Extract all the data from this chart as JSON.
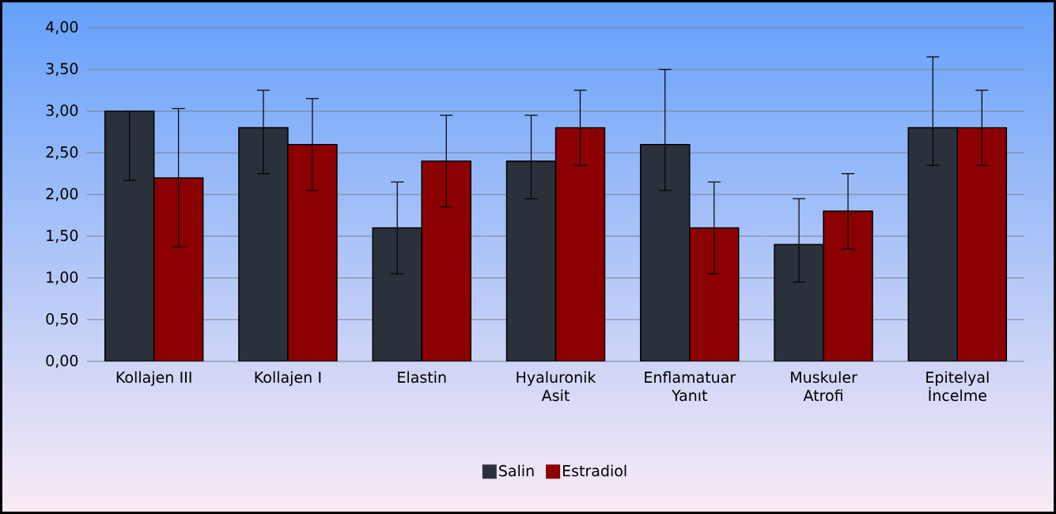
{
  "chart_data": {
    "type": "bar",
    "categories": [
      "Kollajen III",
      "Kollajen I",
      "Elastin",
      "Hyaluronik Asit",
      "Enflamatuar Yanıt",
      "Muskuler Atrofi",
      "Epitelyal İncelme"
    ],
    "series": [
      {
        "name": "Salin",
        "color": "#2a313b",
        "values": [
          3.0,
          2.8,
          1.6,
          2.4,
          2.6,
          1.4,
          2.8
        ],
        "errors": [
          [
            2.17,
            3.0
          ],
          [
            2.25,
            3.25
          ],
          [
            1.05,
            2.15
          ],
          [
            1.95,
            2.95
          ],
          [
            2.05,
            3.5
          ],
          [
            0.95,
            1.95
          ],
          [
            2.35,
            3.65
          ]
        ]
      },
      {
        "name": "Estradiol",
        "color": "#8b0000",
        "values": [
          2.2,
          2.6,
          2.4,
          2.8,
          1.6,
          1.8,
          2.8
        ],
        "errors": [
          [
            1.37,
            3.03
          ],
          [
            2.05,
            3.15
          ],
          [
            1.85,
            2.95
          ],
          [
            2.35,
            3.25
          ],
          [
            1.05,
            2.15
          ],
          [
            1.35,
            2.25
          ],
          [
            2.35,
            3.25
          ]
        ]
      }
    ],
    "ylim": [
      0,
      4
    ],
    "yticks": [
      {
        "value": 0,
        "label": "0,00"
      },
      {
        "value": 0.5,
        "label": "0,50"
      },
      {
        "value": 1,
        "label": "1,00"
      },
      {
        "value": 1.5,
        "label": "1,50"
      },
      {
        "value": 2,
        "label": "2,00"
      },
      {
        "value": 2.5,
        "label": "2,50"
      },
      {
        "value": 3,
        "label": "3,00"
      },
      {
        "value": 3.5,
        "label": "3,50"
      },
      {
        "value": 4,
        "label": "4,00"
      }
    ],
    "grid": "y",
    "legend": "bottom"
  }
}
